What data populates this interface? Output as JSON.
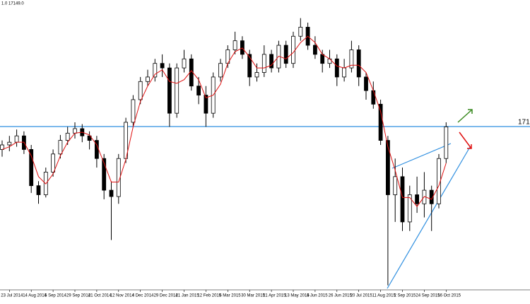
{
  "chart_data": {
    "type": "candlestick",
    "top_label": "1.0 17149.0",
    "hline_label": "171",
    "ylim": [
      15350,
      18550
    ],
    "categories": [
      null,
      "23 Jul 2014",
      null,
      null,
      "14 Aug 2014",
      null,
      null,
      "5 Sep 2014",
      null,
      null,
      "29 Sep 2014",
      null,
      null,
      "21 Oct 2014",
      null,
      null,
      "12 Nov 2014",
      null,
      null,
      "4 Dec 2014",
      null,
      null,
      "29 Dec 2014",
      null,
      null,
      "21 Jan 2015",
      null,
      null,
      "12 Feb 2015",
      null,
      null,
      "6 Mar 2015",
      null,
      null,
      "30 Mar 2015",
      null,
      null,
      "21 Apr 2015",
      null,
      null,
      "13 May 2015",
      null,
      null,
      "4 Jun 2015",
      null,
      null,
      "26 Jun 2015",
      null,
      null,
      "20 Jul 2015",
      null,
      null,
      "11 Aug 2015",
      null,
      null,
      "2 Sep 2015",
      null,
      null,
      "24 Sep 2015",
      null,
      null,
      "16 Oct 2015"
    ],
    "open": [
      16900,
      16950,
      16980,
      17050,
      16900,
      16500,
      16400,
      16650,
      16850,
      17000,
      17080,
      17130,
      17050,
      17000,
      16800,
      16450,
      16380,
      16800,
      17200,
      17450,
      17650,
      17700,
      17850,
      17800,
      17300,
      17800,
      17900,
      17600,
      17500,
      17300,
      17700,
      17850,
      18000,
      18100,
      17950,
      17700,
      17750,
      17950,
      17800,
      18050,
      17850,
      18150,
      18250,
      18050,
      17950,
      17850,
      17900,
      17700,
      17800,
      18000,
      17700,
      17550,
      17400,
      17000,
      16400,
      16600,
      16100,
      16400,
      16300,
      16450,
      16300,
      16800
    ],
    "high": [
      17000,
      17050,
      17120,
      17100,
      16950,
      16550,
      16700,
      16900,
      17060,
      17150,
      17200,
      17180,
      17100,
      17050,
      16850,
      16550,
      16850,
      17250,
      17500,
      17700,
      17780,
      17900,
      17950,
      17850,
      17850,
      18000,
      17950,
      17700,
      17600,
      17750,
      17900,
      18050,
      18200,
      18150,
      18000,
      17850,
      18050,
      18000,
      18100,
      18100,
      18200,
      18350,
      18300,
      18150,
      18000,
      18000,
      17950,
      17900,
      18100,
      18050,
      17750,
      17650,
      17450,
      17050,
      16800,
      16700,
      16500,
      16600,
      16650,
      16500,
      16850,
      17200
    ],
    "low": [
      16820,
      16880,
      16930,
      16850,
      16420,
      16300,
      16370,
      16600,
      16800,
      16950,
      17020,
      16980,
      16900,
      16700,
      16350,
      15900,
      16300,
      16750,
      17150,
      17400,
      17600,
      17650,
      17700,
      17150,
      17250,
      17750,
      17550,
      17400,
      17150,
      17250,
      17650,
      17800,
      17950,
      17900,
      17600,
      17650,
      17700,
      17750,
      17750,
      17800,
      17800,
      18100,
      18000,
      17900,
      17750,
      17800,
      17600,
      17650,
      17750,
      17600,
      17450,
      17350,
      16950,
      15400,
      16100,
      16000,
      16000,
      16200,
      16150,
      16000,
      16250,
      16750
    ],
    "close": [
      16950,
      16980,
      17050,
      16900,
      16500,
      16400,
      16650,
      16850,
      17000,
      17080,
      17130,
      17050,
      17000,
      16800,
      16450,
      16380,
      16800,
      17200,
      17450,
      17650,
      17700,
      17850,
      17800,
      17300,
      17800,
      17900,
      17600,
      17500,
      17300,
      17700,
      17850,
      18000,
      18100,
      17950,
      17700,
      17750,
      17950,
      17800,
      18050,
      17850,
      18150,
      18250,
      18050,
      17950,
      17850,
      17900,
      17700,
      17800,
      18000,
      17700,
      17550,
      17400,
      17000,
      16400,
      16600,
      16100,
      16400,
      16300,
      16450,
      16300,
      16800,
      17150
    ],
    "ma": {
      "color": "#e01010",
      "values": [
        16900,
        16930,
        16980,
        16980,
        16830,
        16600,
        16520,
        16630,
        16830,
        16980,
        17080,
        17090,
        17060,
        16950,
        16750,
        16540,
        16540,
        16790,
        17150,
        17430,
        17600,
        17730,
        17780,
        17650,
        17630,
        17670,
        17770,
        17670,
        17470,
        17500,
        17620,
        17850,
        17980,
        18020,
        17920,
        17800,
        17800,
        17830,
        17930,
        17900,
        17970,
        18080,
        18150,
        18080,
        17950,
        17900,
        17820,
        17800,
        17830,
        17830,
        17750,
        17550,
        17320,
        16930,
        16670,
        16370,
        16370,
        16270,
        16380,
        16350,
        16500,
        16750
      ]
    }
  }
}
